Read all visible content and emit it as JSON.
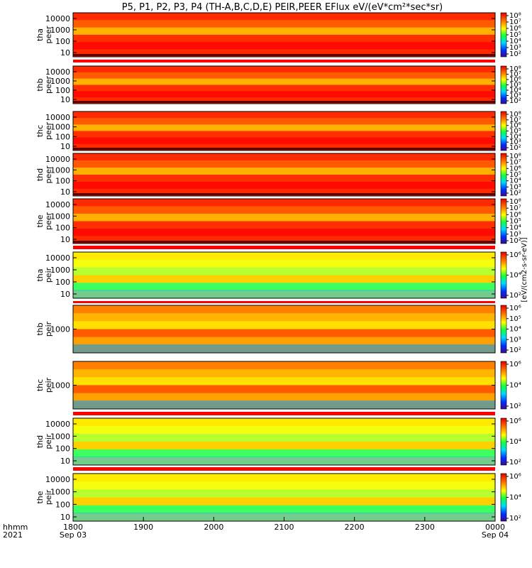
{
  "title": "P5, P1, P2, P3, P4 (TH-A,B,C,D,E) PEIR,PEER EFlux eV/(eV*cm²*sec*sr)",
  "chart_data": {
    "type": "heatmap",
    "title": "P5, P1, P2, P3, P4 (TH-A,B,C,D,E) PEIR,PEER EFlux eV/(eV*cm²*sec*sr)",
    "x_ticks": [
      "1800",
      "1900",
      "2000",
      "2100",
      "2200",
      "2300",
      "0000"
    ],
    "x_dates": [
      "Sep 03",
      "",
      "",
      "",
      "",
      "",
      "Sep 04"
    ],
    "x_axis_label": [
      "hhmm",
      "2021"
    ],
    "colorbar_label": "[eV/(cm2-s-sr-eV)]",
    "colorbar_unit_repeated": "eV/(eV*cm²*sec*sr)",
    "panels": [
      {
        "probe": "tha",
        "species": "peer",
        "ylabel": [
          "tha",
          "peer"
        ],
        "y_scale": "log",
        "y_ticks": [
          "10",
          "100",
          "1000",
          "10000"
        ],
        "cbar_ticks": [
          "10²",
          "10³",
          "10⁴",
          "10⁵",
          "10⁶",
          "10⁷",
          "10⁸"
        ],
        "dominant": "red"
      },
      {
        "probe": "thb",
        "species": "peer",
        "ylabel": [
          "thb",
          "peer"
        ],
        "y_scale": "log",
        "y_ticks": [
          "10",
          "100",
          "1000",
          "10000"
        ],
        "cbar_ticks": [
          "10²",
          "10³",
          "10⁴",
          "10⁵",
          "10⁶",
          "10⁷",
          "10⁸"
        ],
        "dominant": "red"
      },
      {
        "probe": "thc",
        "species": "peer",
        "ylabel": [
          "thc",
          "peer"
        ],
        "y_scale": "log",
        "y_ticks": [
          "10",
          "100",
          "1000",
          "10000"
        ],
        "cbar_ticks": [
          "10²",
          "10³",
          "10⁴",
          "10⁵",
          "10⁶",
          "10⁷",
          "10⁸"
        ],
        "dominant": "red"
      },
      {
        "probe": "thd",
        "species": "peer",
        "ylabel": [
          "thd",
          "peer"
        ],
        "y_scale": "log",
        "y_ticks": [
          "10",
          "100",
          "1000",
          "10000"
        ],
        "cbar_ticks": [
          "10²",
          "10³",
          "10⁴",
          "10⁵",
          "10⁶",
          "10⁷",
          "10⁸"
        ],
        "dominant": "red"
      },
      {
        "probe": "the",
        "species": "peer",
        "ylabel": [
          "the",
          "peer"
        ],
        "y_scale": "log",
        "y_ticks": [
          "10",
          "100",
          "1000",
          "10000"
        ],
        "cbar_ticks": [
          "10²",
          "10³",
          "10⁴",
          "10⁵",
          "10⁶",
          "10⁷",
          "10⁸"
        ],
        "dominant": "red"
      },
      {
        "probe": "tha",
        "species": "peir",
        "ylabel": [
          "tha",
          "peir"
        ],
        "y_scale": "log",
        "y_ticks": [
          "10",
          "100",
          "1000",
          "10000"
        ],
        "cbar_ticks": [
          "10²",
          "10⁴",
          "10⁶"
        ],
        "dominant": "yellow"
      },
      {
        "probe": "thb",
        "species": "peir",
        "ylabel": [
          "thb",
          "peir"
        ],
        "y_scale": "log",
        "y_ticks": [
          "1000"
        ],
        "cbar_ticks": [
          "10²",
          "10³",
          "10⁴",
          "10⁵",
          "10⁶"
        ],
        "dominant": "orange"
      },
      {
        "probe": "thc",
        "species": "peir",
        "ylabel": [
          "thc",
          "peir"
        ],
        "y_scale": "log",
        "y_ticks": [
          "1000"
        ],
        "cbar_ticks": [
          "10²",
          "10⁴",
          "10⁶"
        ],
        "dominant": "orange"
      },
      {
        "probe": "thd",
        "species": "peir",
        "ylabel": [
          "thd",
          "peir"
        ],
        "y_scale": "log",
        "y_ticks": [
          "10",
          "100",
          "1000",
          "10000"
        ],
        "cbar_ticks": [
          "10²",
          "10⁴",
          "10⁶"
        ],
        "dominant": "yellow"
      },
      {
        "probe": "the",
        "species": "peir",
        "ylabel": [
          "the",
          "peir"
        ],
        "y_scale": "log",
        "y_ticks": [
          "10",
          "100",
          "1000",
          "10000"
        ],
        "cbar_ticks": [
          "10²",
          "10⁴",
          "10⁶"
        ],
        "dominant": "yellow"
      }
    ]
  }
}
